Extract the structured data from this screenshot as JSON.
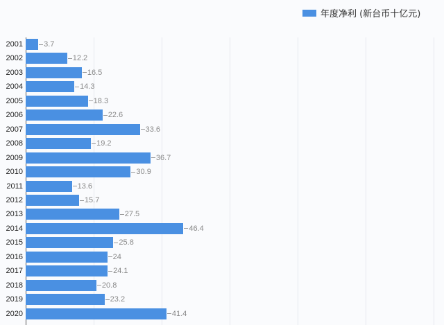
{
  "legend": {
    "label": "年度净利 (新台币十亿元)",
    "color": "#4a90e2"
  },
  "chart_data": {
    "type": "bar",
    "orientation": "horizontal",
    "title": "",
    "xlabel": "",
    "ylabel": "",
    "categories": [
      "2001",
      "2002",
      "2003",
      "2004",
      "2005",
      "2006",
      "2007",
      "2008",
      "2009",
      "2010",
      "2011",
      "2012",
      "2013",
      "2014",
      "2015",
      "2016",
      "2017",
      "2018",
      "2019",
      "2020"
    ],
    "series": [
      {
        "name": "年度净利 (新台币十亿元)",
        "color": "#4a90e2",
        "values": [
          3.7,
          12.2,
          16.5,
          14.3,
          18.3,
          22.6,
          33.6,
          19.2,
          36.7,
          30.9,
          13.6,
          15.7,
          27.5,
          46.4,
          25.8,
          24,
          24.1,
          20.8,
          23.2,
          41.4
        ]
      }
    ],
    "value_labels": [
      "3.7",
      "12.2",
      "16.5",
      "14.3",
      "18.3",
      "22.6",
      "33.6",
      "19.2",
      "36.7",
      "30.9",
      "13.6",
      "15.7",
      "27.5",
      "46.4",
      "25.8",
      "24",
      "24.1",
      "20.8",
      "23.2",
      "41.4"
    ],
    "xlim": [
      0,
      120
    ],
    "grid": true,
    "grid_ticks": [
      20,
      40,
      60,
      80,
      100,
      120
    ],
    "legend_position": "top-right"
  }
}
